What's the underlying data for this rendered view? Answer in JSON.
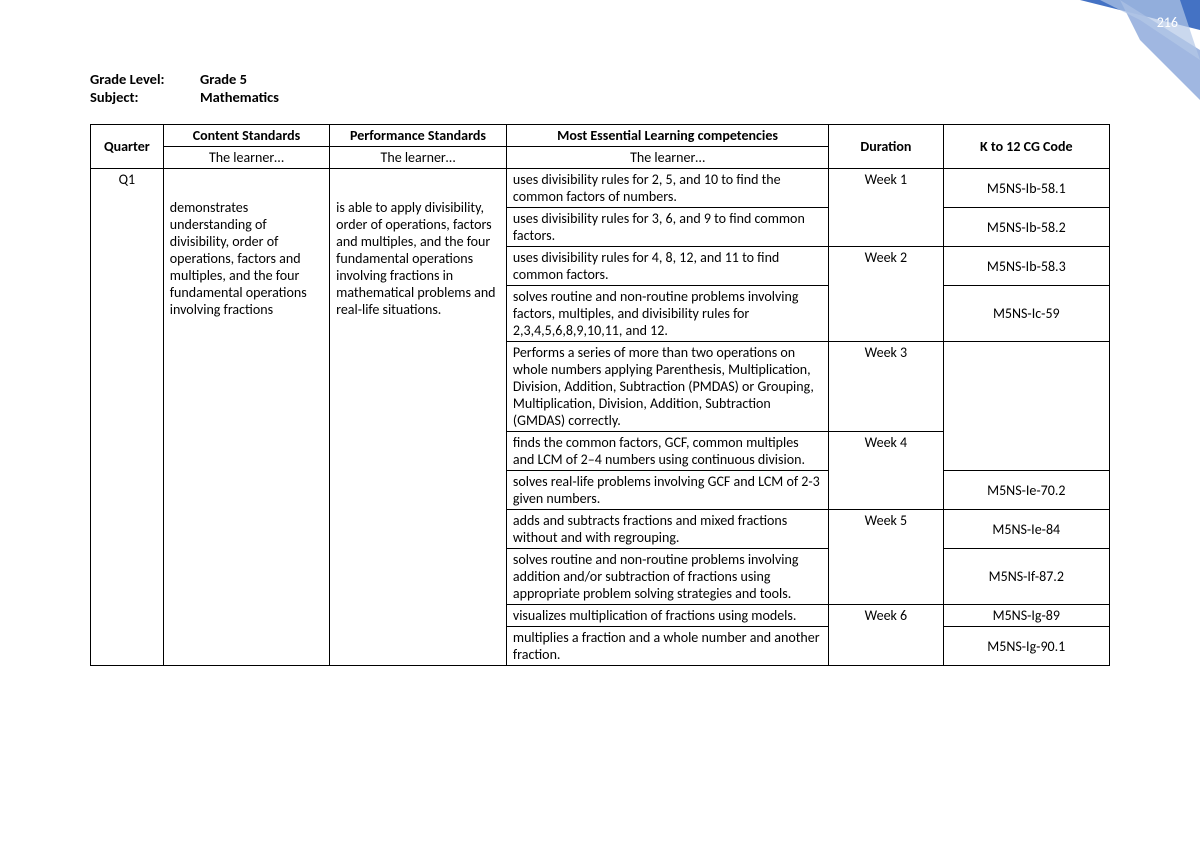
{
  "page_number": "216",
  "meta": {
    "grade_label": "Grade Level:",
    "grade_value": "Grade 5",
    "subject_label": "Subject:",
    "subject_value": "Mathematics"
  },
  "headers": {
    "quarter": "Quarter",
    "content": "Content Standards",
    "performance": "Performance Standards",
    "competencies": "Most Essential Learning competencies",
    "duration": "Duration",
    "code": "K to 12 CG Code",
    "sub_content": "The learner…",
    "sub_performance": "The learner…",
    "sub_competencies": "The learner…"
  },
  "quarter": "Q1",
  "content_standard": "demonstrates understanding of divisibility, order of operations, factors and multiples, and the four fundamental operations involving fractions",
  "performance_standard": "is able to apply divisibility, order of operations, factors and multiples, and the four fundamental operations involving fractions in mathematical problems and real-life situations.",
  "rows": [
    {
      "competency": "uses divisibility rules for  2, 5, and 10 to find the common factors of numbers.",
      "duration": "Week 1",
      "code": "M5NS-Ib-58.1"
    },
    {
      "competency": "uses divisibility rules for 3, 6, and 9 to find common factors.",
      "duration": "",
      "code": "M5NS-Ib-58.2"
    },
    {
      "competency": "uses divisibility rules for  4, 8, 12, and 11 to find common factors.",
      "duration": "Week 2",
      "code": "M5NS-Ib-58.3"
    },
    {
      "competency": "solves routine and non-routine problems involving  factors, multiples, and divisibility rules for 2,3,4,5,6,8,9,10,11, and 12.",
      "duration": "",
      "code": "M5NS-Ic-59"
    },
    {
      "competency": "Performs a series of more than two operations on whole numbers applying Parenthesis, Multiplication, Division, Addition, Subtraction (PMDAS) or Grouping, Multiplication, Division, Addition, Subtraction (GMDAS) correctly.",
      "duration": "Week 3",
      "code": ""
    },
    {
      "competency": "finds the common factors, GCF, common multiples and LCM of 2–4 numbers using continuous division.",
      "duration": "Week 4",
      "code": ""
    },
    {
      "competency": "solves real-life problems involving GCF and LCM of 2-3 given numbers.",
      "duration": "",
      "code": "M5NS-Ie-70.2"
    },
    {
      "competency": "adds and subtracts fractions and mixed fractions without and with regrouping.",
      "duration": "Week 5",
      "code": "M5NS-Ie-84"
    },
    {
      "competency": "solves routine and non-routine problems involving addition and/or subtraction of fractions using appropriate problem solving strategies and tools.",
      "duration": "",
      "code": "M5NS-If-87.2"
    },
    {
      "competency": "visualizes multiplication of fractions using models.",
      "duration": "Week 6",
      "code": "M5NS-Ig-89"
    },
    {
      "competency": "multiplies a fraction and a whole number and another fraction.",
      "duration": "",
      "code": "M5NS-Ig-90.1"
    }
  ],
  "merges": {
    "duration": [
      {
        "start": 0,
        "span": 2
      },
      {
        "start": 2,
        "span": 2
      },
      {
        "start": 4,
        "span": 1
      },
      {
        "start": 5,
        "span": 2
      },
      {
        "start": 7,
        "span": 2
      },
      {
        "start": 9,
        "span": 2
      }
    ],
    "code": [
      {
        "start": 4,
        "span": 2
      }
    ]
  },
  "colors": {
    "corner_dark": "#4472c4",
    "corner_mid": "#8faadc",
    "corner_light": "#b4c7e7"
  }
}
